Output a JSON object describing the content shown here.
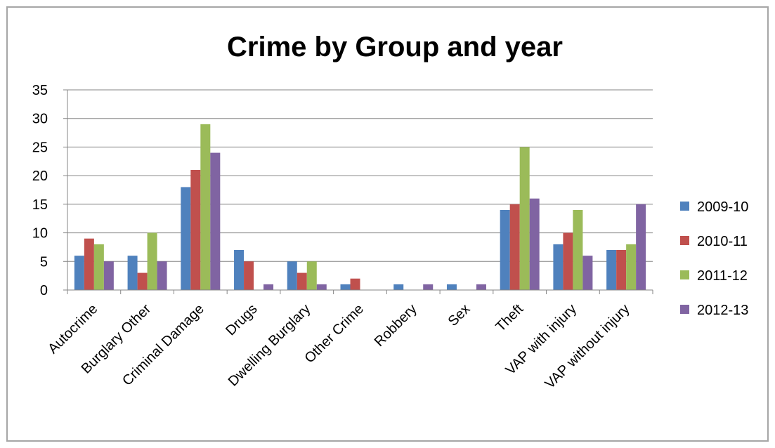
{
  "chart_data": {
    "type": "bar",
    "title": "Crime by Group and year",
    "xlabel": "",
    "ylabel": "",
    "ylim": [
      0,
      35
    ],
    "yticks": [
      0,
      5,
      10,
      15,
      20,
      25,
      30,
      35
    ],
    "grid": true,
    "legend_position": "right",
    "categories": [
      "Autocrime",
      "Burglary Other",
      "Criminal Damage",
      "Drugs",
      "Dwelling Burglary",
      "Other Crime",
      "Robbery",
      "Sex",
      "Theft",
      "VAP with injury",
      "VAP without injury"
    ],
    "series": [
      {
        "name": "2009-10",
        "color": "#4f81bd",
        "values": [
          6,
          6,
          18,
          7,
          5,
          1,
          1,
          1,
          14,
          8,
          7
        ]
      },
      {
        "name": "2010-11",
        "color": "#c0504d",
        "values": [
          9,
          3,
          21,
          5,
          3,
          2,
          0,
          0,
          15,
          10,
          7
        ]
      },
      {
        "name": "2011-12",
        "color": "#9bbb59",
        "values": [
          8,
          10,
          29,
          0,
          5,
          0,
          0,
          0,
          25,
          14,
          8
        ]
      },
      {
        "name": "2012-13",
        "color": "#8064a2",
        "values": [
          5,
          5,
          24,
          1,
          1,
          0,
          1,
          1,
          16,
          6,
          15
        ]
      }
    ]
  }
}
